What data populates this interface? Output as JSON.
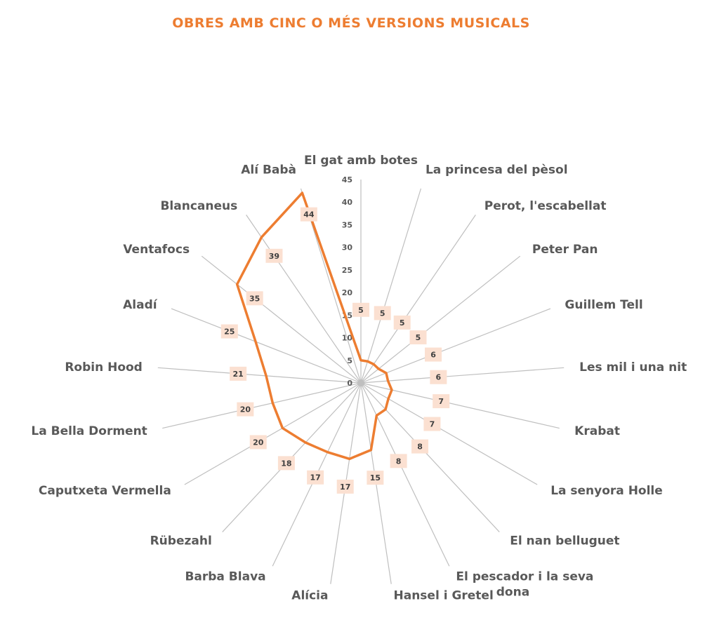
{
  "chart_data": {
    "type": "radar",
    "title": "OBRES AMB CINC O MÉS VERSIONS MUSICALS",
    "categories": [
      "El gat amb botes",
      "La princesa del pèsol",
      "Perot, l'escabellat",
      "Peter Pan",
      "Guillem Tell",
      "Les mil i una nit",
      "Krabat",
      "La senyora Holle",
      "El nan belluguet",
      "El pescador i la seva dona",
      "Hansel i Gretel",
      "Alícia",
      "Barba Blava",
      "Rübezahl",
      "Caputxeta Vermella",
      "La Bella Dorment",
      "Robin Hood",
      "Aladí",
      "Ventafocs",
      "Blancaneus",
      "Alí Babà"
    ],
    "values": [
      5,
      5,
      5,
      5,
      6,
      6,
      7,
      7,
      8,
      8,
      15,
      17,
      17,
      18,
      20,
      20,
      21,
      25,
      35,
      39,
      44
    ],
    "ticks": [
      0,
      5,
      10,
      15,
      20,
      25,
      30,
      35,
      40,
      45
    ],
    "rlim": [
      0,
      45
    ],
    "grid": "spokes only",
    "legend": "none",
    "colors": {
      "line": "#ED7D31",
      "label_bg": "#FBE0D1",
      "spoke": "#BFBFBF",
      "text": "#595959"
    }
  }
}
